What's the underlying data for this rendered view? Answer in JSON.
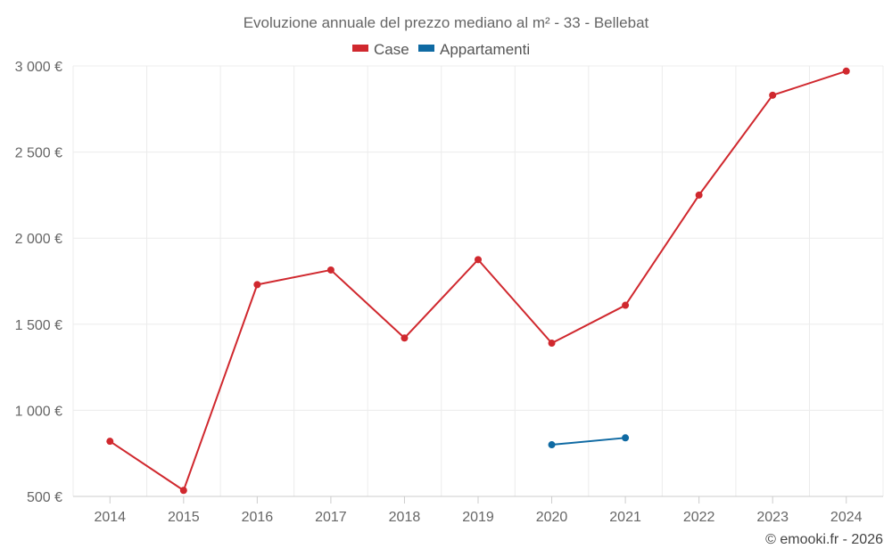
{
  "chart_data": {
    "type": "line",
    "title": "Evoluzione annuale del prezzo mediano al m² - 33 - Bellebat",
    "categories": [
      "2014",
      "2015",
      "2016",
      "2017",
      "2018",
      "2019",
      "2020",
      "2021",
      "2022",
      "2023",
      "2024"
    ],
    "series": [
      {
        "name": "Case",
        "color": "#d0282e",
        "values": [
          820,
          535,
          1730,
          1815,
          1420,
          1875,
          1390,
          1610,
          2250,
          2830,
          2970
        ]
      },
      {
        "name": "Appartamenti",
        "color": "#0f6aa3",
        "values": [
          null,
          null,
          null,
          null,
          null,
          null,
          800,
          840,
          null,
          null,
          null
        ]
      }
    ],
    "ylim": [
      500,
      3000
    ],
    "yticks": [
      500,
      1000,
      1500,
      2000,
      2500,
      3000
    ],
    "ytick_labels": [
      "500 €",
      "1 000 €",
      "1 500 €",
      "2 000 €",
      "2 500 €",
      "3 000 €"
    ],
    "xlabel": "",
    "ylabel": "",
    "grid": true,
    "legend_position": "top-center",
    "credit": "© emooki.fr - 2026"
  }
}
